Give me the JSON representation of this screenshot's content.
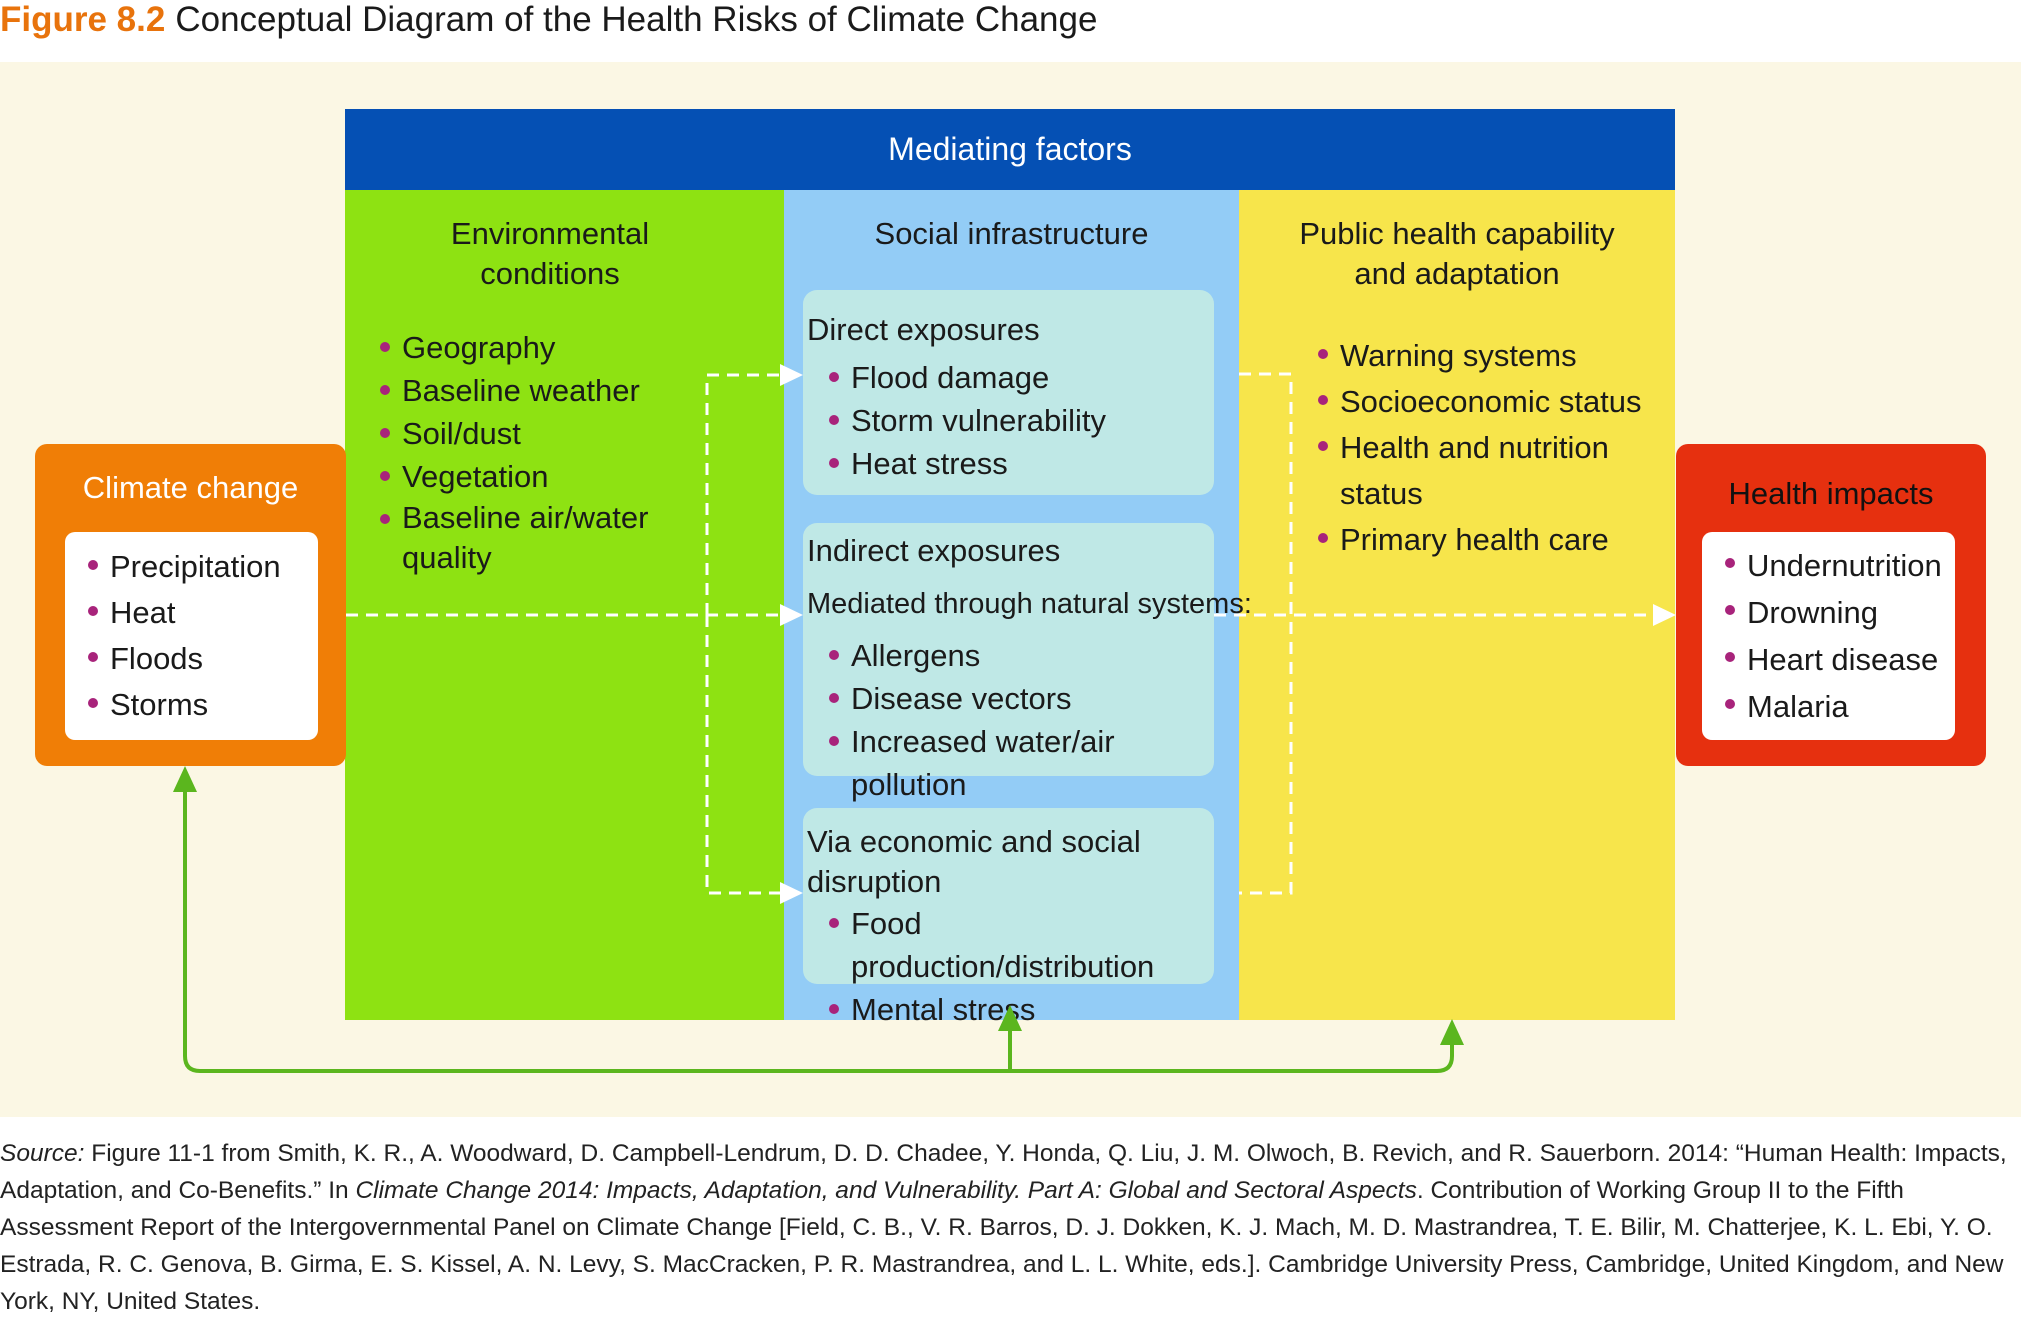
{
  "figure": {
    "number": "Figure 8.2",
    "title": "Conceptual Diagram of the Health Risks of Climate Change"
  },
  "mediating_factors": {
    "label": "Mediating factors",
    "environmental": {
      "title_line1": "Environmental",
      "title_line2": "conditions",
      "items": [
        "Geography",
        "Baseline weather",
        "Soil/dust",
        "Vegetation",
        "Baseline air/water quality"
      ]
    },
    "social": {
      "title": "Social infrastructure",
      "direct": {
        "title": "Direct exposures",
        "items": [
          "Flood damage",
          "Storm vulnerability",
          "Heat stress"
        ]
      },
      "indirect": {
        "title": "Indirect exposures",
        "note": "Mediated through natural systems:",
        "items": [
          "Allergens",
          "Disease vectors",
          "Increased water/air pollution"
        ]
      },
      "economic": {
        "title": "Via economic and social disruption",
        "items": [
          "Food production/distribution",
          "Mental stress"
        ]
      }
    },
    "public_health": {
      "title_line1": "Public health capability",
      "title_line2": "and adaptation",
      "items": [
        "Warning systems",
        "Socioeconomic status",
        "Health and nutrition status",
        "Primary health care"
      ]
    }
  },
  "climate_change": {
    "title": "Climate change",
    "items": [
      "Precipitation",
      "Heat",
      "Floods",
      "Storms"
    ]
  },
  "health_impacts": {
    "title": "Health impacts",
    "items": [
      "Undernutrition",
      "Drowning",
      "Heart disease",
      "Malaria"
    ]
  },
  "source": {
    "label": "Source:",
    "part1": " Figure 11-1 from Smith, K. R., A. Woodward, D. Campbell-Lendrum, D. D. Chadee, Y. Honda, Q. Liu, J. M. Olwoch, B. Revich, and R. Sauerborn. 2014: “Human Health: Impacts, Adaptation, and Co-Benefits.” In ",
    "book": "Climate Change 2014: Impacts, Adaptation, and Vulnerability. Part A: Global and Sectoral Aspects",
    "part2": ". Contribution of Working Group II to the Fifth Assessment Report of the Intergovernmental Panel on Climate Change [Field, C. B., V. R. Barros, D. J. Dokken, K. J. Mach, M. D. Mastrandrea, T. E. Bilir, M. Chatterjee, K. L. Ebi, Y. O. Estrada, R. C. Genova, B. Girma, E. S. Kissel, A. N. Levy, S. MacCracken, P. R. Mastrandrea, and L. L. White, eds.]. Cambridge University Press, Cambridge, United Kingdom, and New York, NY, United States."
  },
  "colors": {
    "mediating_header": "#0550b4",
    "environmental": "#8ee212",
    "social": "#93ccf6",
    "public_health": "#f7e54b",
    "climate_change": "#f07e06",
    "health_impacts": "#e6300f",
    "feedback_arrow": "#5bb61e",
    "bullet": "#a8237b"
  }
}
